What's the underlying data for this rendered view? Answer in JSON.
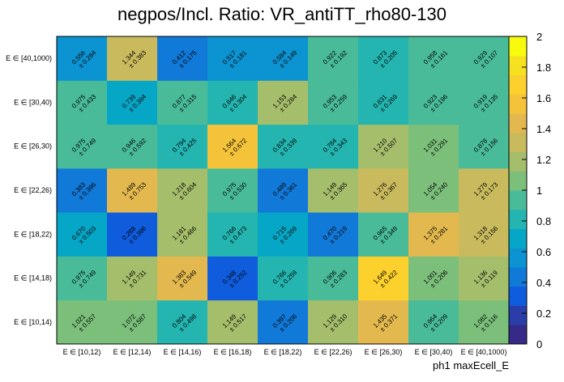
{
  "chart_data": {
    "type": "heatmap",
    "title": "negpos/Incl. Ratio: VR_antiTT_rho80-130",
    "xlabel": "ph1 maxEcell_E",
    "ylabel": "",
    "x_categories": [
      "E ∈ [10,12)",
      "E ∈ [12,14)",
      "E ∈ [14,16)",
      "E ∈ [16,18)",
      "E ∈ [18,22)",
      "E ∈ [22,26)",
      "E ∈ [26,30)",
      "E ∈ [30,40)",
      "E ∈ [40,1000)"
    ],
    "y_categories": [
      "E ∈ [10,14)",
      "E ∈ [14,18)",
      "E ∈ [18,22)",
      "E ∈ [22,26)",
      "E ∈ [26,30)",
      "E ∈ [30,40)",
      "E ∈ [40,1000)"
    ],
    "zlim": [
      0,
      2
    ],
    "z_ticks": [
      "0",
      "0.2",
      "0.4",
      "0.6",
      "0.8",
      "1",
      "1.2",
      "1.4",
      "1.6",
      "1.8",
      "2"
    ],
    "values": [
      [
        1.021,
        1.072,
        0.804,
        1.149,
        0.397,
        1.129,
        1.435,
        0.964,
        1.082
      ],
      [
        0.975,
        1.149,
        1.383,
        0.348,
        0.766,
        0.906,
        1.649,
        1.001,
        1.136
      ],
      [
        0.67,
        0.288,
        1.181,
        0.766,
        0.715,
        0.47,
        0.965,
        1.375,
        1.318
      ],
      [
        0.383,
        1.489,
        1.218,
        0.975,
        0.489,
        1.149,
        1.276,
        1.054,
        1.279
      ],
      [
        0.975,
        0.946,
        0.794,
        1.564,
        0.834,
        0.784,
        1.21,
        1.031,
        0.878
      ],
      [
        0.975,
        0.739,
        0.877,
        0.846,
        1.153,
        0.953,
        0.831,
        0.923,
        0.919
      ],
      [
        0.556,
        1.344,
        0.412,
        0.517,
        0.584,
        0.922,
        0.873,
        0.958,
        0.929
      ]
    ],
    "errors": [
      [
        0.557,
        0.587,
        0.498,
        0.517,
        0.206,
        0.31,
        0.371,
        0.209,
        0.116
      ],
      [
        0.749,
        0.731,
        0.549,
        0.252,
        0.259,
        0.283,
        0.422,
        0.206,
        0.119
      ],
      [
        0.503,
        0.396,
        0.466,
        0.473,
        0.269,
        0.219,
        0.349,
        0.281,
        0.156
      ],
      [
        0.396,
        0.753,
        0.604,
        0.53,
        0.361,
        0.365,
        0.367,
        0.24,
        0.173
      ],
      [
        0.749,
        0.592,
        0.425,
        0.672,
        0.339,
        0.343,
        0.507,
        0.291,
        0.156
      ],
      [
        0.433,
        0.394,
        0.315,
        0.304,
        0.284,
        0.259,
        0.269,
        0.196,
        0.135
      ],
      [
        0.284,
        0.383,
        0.175,
        0.181,
        0.149,
        0.192,
        0.205,
        0.161,
        0.107
      ]
    ]
  }
}
